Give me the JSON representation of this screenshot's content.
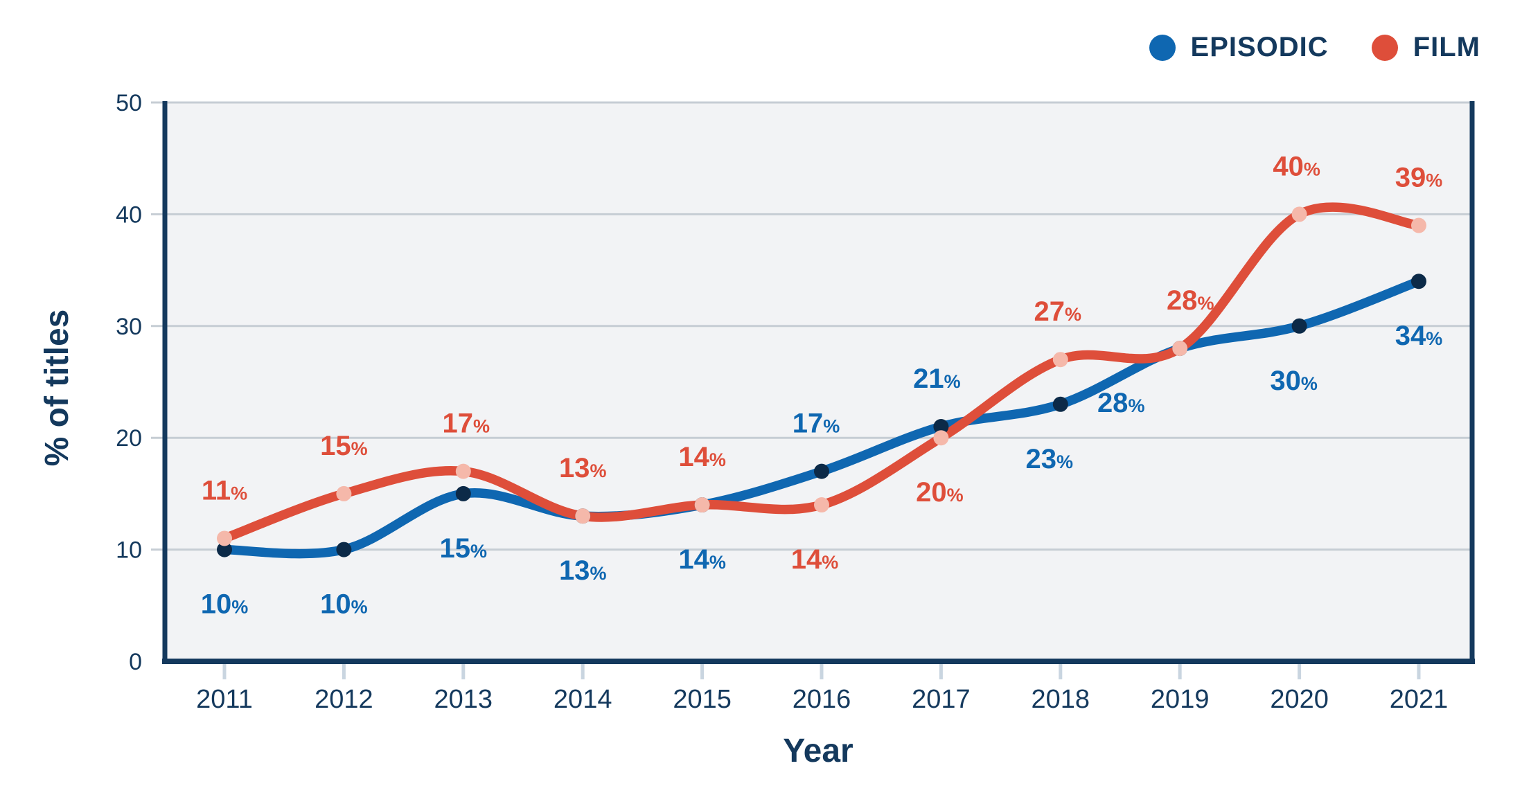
{
  "chart_data": {
    "type": "line",
    "title": "",
    "xlabel": "Year",
    "ylabel": "% of titles",
    "categories": [
      2011,
      2012,
      2013,
      2014,
      2015,
      2016,
      2017,
      2018,
      2019,
      2020,
      2021
    ],
    "ylim": [
      0,
      50
    ],
    "yticks": [
      0,
      10,
      20,
      30,
      40,
      50
    ],
    "grid": true,
    "legend_position": "top-right",
    "series": [
      {
        "name": "EPISODIC",
        "line_color": "#0f67b1",
        "marker_color": "#0c2a48",
        "label_color": "#0f67b1",
        "values": [
          10,
          10,
          15,
          13,
          14,
          17,
          21,
          23,
          28,
          30,
          34
        ],
        "labels": [
          "10%",
          "10%",
          "15%",
          "13%",
          "14%",
          "17%",
          "21%",
          "23%",
          "28%",
          "30%",
          "34%"
        ],
        "label_positions": [
          "below",
          "below",
          "below",
          "below",
          "below",
          "above",
          "above",
          "below",
          "below",
          "below",
          "below"
        ],
        "label_dx": [
          0,
          0,
          0,
          0,
          0,
          -8,
          -6,
          -16,
          -85,
          -8,
          0
        ]
      },
      {
        "name": "FILM",
        "line_color": "#de4e3a",
        "marker_color": "#f5b8aa",
        "label_color": "#de4e3a",
        "values": [
          11,
          15,
          17,
          13,
          14,
          14,
          20,
          27,
          28,
          40,
          39
        ],
        "labels": [
          "11%",
          "15%",
          "17%",
          "13%",
          "14%",
          "14%",
          "20%",
          "27%",
          "28%",
          "40%",
          "39%"
        ],
        "label_positions": [
          "above",
          "above",
          "above",
          "above",
          "above",
          "below",
          "below",
          "above",
          "above",
          "above",
          "above"
        ],
        "label_dx": [
          0,
          0,
          4,
          0,
          0,
          -10,
          -2,
          -4,
          15,
          -4,
          0
        ]
      }
    ]
  },
  "colors": {
    "page_bg": "#ffffff",
    "plot_bg": "#f2f3f5",
    "grid": "#c6cdd4",
    "x_tick": "#c9d5e0",
    "axis_frame": "#14395d",
    "text_navy": "#14395d"
  }
}
